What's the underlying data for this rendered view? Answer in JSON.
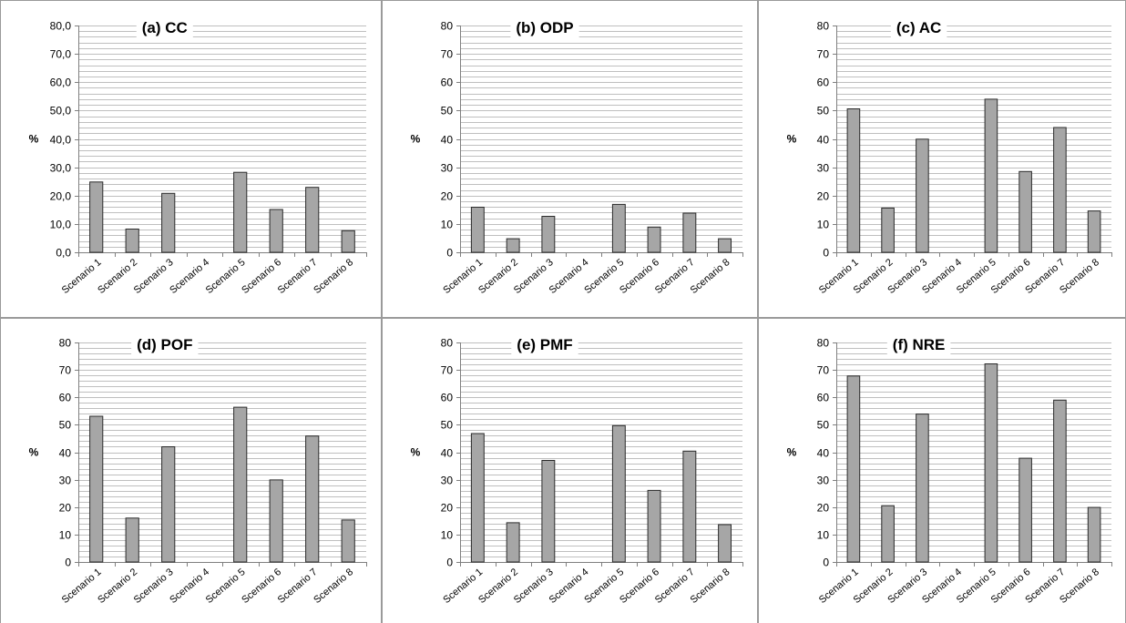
{
  "colors": {
    "bar_fill": "#a6a6a6",
    "bar_stroke": "#2b2b2b",
    "gridline": "#bfbfbf",
    "axis": "#7f7f7f",
    "panel_border": "#9a9a9a",
    "text": "#000000"
  },
  "chart_data": [
    {
      "type": "bar",
      "title": "(a) CC",
      "ylabel": "%",
      "xlabel": "",
      "categories": [
        "Scenario 1",
        "Scenario 2",
        "Scenario 3",
        "Scenario 4",
        "Scenario 5",
        "Scenario 6",
        "Scenario 7",
        "Scenario 8"
      ],
      "values": [
        24.8,
        8.2,
        20.8,
        0,
        28.2,
        15.1,
        22.9,
        7.6
      ],
      "ylim": [
        0,
        80
      ],
      "yticks": [
        "0,0",
        "10,0",
        "20,0",
        "30,0",
        "40,0",
        "50,0",
        "60,0",
        "70,0",
        "80,0"
      ],
      "grid": true
    },
    {
      "type": "bar",
      "title": "(b) ODP",
      "ylabel": "%",
      "xlabel": "",
      "categories": [
        "Scenario 1",
        "Scenario 2",
        "Scenario 3",
        "Scenario 4",
        "Scenario 5",
        "Scenario 6",
        "Scenario 7",
        "Scenario 8"
      ],
      "values": [
        15.9,
        4.8,
        12.7,
        0,
        16.9,
        8.9,
        13.8,
        4.8
      ],
      "ylim": [
        0,
        80
      ],
      "yticks": [
        "0",
        "10",
        "20",
        "30",
        "40",
        "50",
        "60",
        "70",
        "80"
      ],
      "grid": true
    },
    {
      "type": "bar",
      "title": "(c) AC",
      "ylabel": "%",
      "xlabel": "",
      "categories": [
        "Scenario 1",
        "Scenario 2",
        "Scenario 3",
        "Scenario 4",
        "Scenario 5",
        "Scenario 6",
        "Scenario 7",
        "Scenario 8"
      ],
      "values": [
        50.6,
        15.6,
        39.9,
        0,
        54.0,
        28.5,
        44.0,
        14.6
      ],
      "ylim": [
        0,
        80
      ],
      "yticks": [
        "0",
        "10",
        "20",
        "30",
        "40",
        "50",
        "60",
        "70",
        "80"
      ],
      "grid": true
    },
    {
      "type": "bar",
      "title": "(d) POF",
      "ylabel": "%",
      "xlabel": "",
      "categories": [
        "Scenario 1",
        "Scenario 2",
        "Scenario 3",
        "Scenario 4",
        "Scenario 5",
        "Scenario 6",
        "Scenario 7",
        "Scenario 8"
      ],
      "values": [
        53.1,
        16.0,
        42.0,
        0,
        56.4,
        29.9,
        45.9,
        15.3
      ],
      "ylim": [
        0,
        80
      ],
      "yticks": [
        "0",
        "10",
        "20",
        "30",
        "40",
        "50",
        "60",
        "70",
        "80"
      ],
      "grid": true
    },
    {
      "type": "bar",
      "title": "(e) PMF",
      "ylabel": "%",
      "xlabel": "",
      "categories": [
        "Scenario 1",
        "Scenario 2",
        "Scenario 3",
        "Scenario 4",
        "Scenario 5",
        "Scenario 6",
        "Scenario 7",
        "Scenario 8"
      ],
      "values": [
        46.8,
        14.3,
        37.0,
        0,
        49.7,
        26.1,
        40.4,
        13.6
      ],
      "ylim": [
        0,
        80
      ],
      "yticks": [
        "0",
        "10",
        "20",
        "30",
        "40",
        "50",
        "60",
        "70",
        "80"
      ],
      "grid": true
    },
    {
      "type": "bar",
      "title": "(f) NRE",
      "ylabel": "%",
      "xlabel": "",
      "categories": [
        "Scenario 1",
        "Scenario 2",
        "Scenario 3",
        "Scenario 4",
        "Scenario 5",
        "Scenario 6",
        "Scenario 7",
        "Scenario 8"
      ],
      "values": [
        67.8,
        20.5,
        53.9,
        0,
        72.2,
        37.8,
        59.0,
        19.9
      ],
      "ylim": [
        0,
        80
      ],
      "yticks": [
        "0",
        "10",
        "20",
        "30",
        "40",
        "50",
        "60",
        "70",
        "80"
      ],
      "grid": true
    }
  ]
}
